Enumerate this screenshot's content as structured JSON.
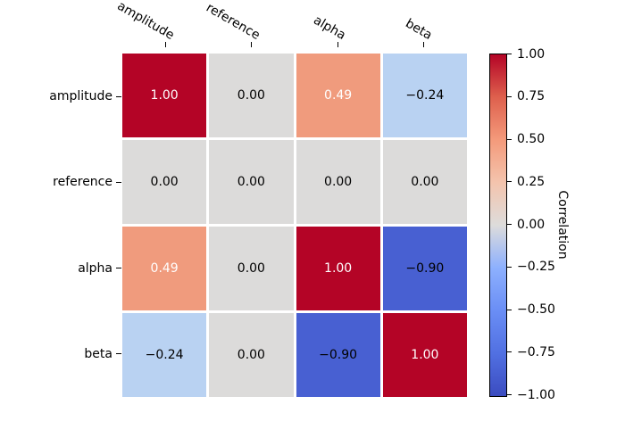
{
  "chart_data": {
    "type": "heatmap",
    "title": "",
    "variables": [
      "amplitude",
      "reference",
      "alpha",
      "beta"
    ],
    "matrix": [
      [
        1.0,
        0.0,
        0.49,
        -0.24
      ],
      [
        0.0,
        0.0,
        0.0,
        0.0
      ],
      [
        0.49,
        0.0,
        1.0,
        -0.9
      ],
      [
        -0.24,
        0.0,
        -0.9,
        1.0
      ]
    ],
    "cell_labels": [
      [
        "1.00",
        "0.00",
        "0.49",
        "−0.24"
      ],
      [
        "0.00",
        "0.00",
        "0.00",
        "0.00"
      ],
      [
        "0.49",
        "0.00",
        "1.00",
        "−0.90"
      ],
      [
        "−0.24",
        "0.00",
        "−0.90",
        "1.00"
      ]
    ],
    "cell_bg": [
      [
        "#b40426",
        "#dcdbda",
        "#f09b7d",
        "#b9d2f2"
      ],
      [
        "#dcdbda",
        "#dcdbda",
        "#dcdbda",
        "#dcdbda"
      ],
      [
        "#f09b7d",
        "#dcdbda",
        "#b40426",
        "#4860d2"
      ],
      [
        "#b9d2f2",
        "#dcdbda",
        "#4860d2",
        "#b40426"
      ]
    ],
    "cell_fg": [
      [
        "#ffffff",
        "#000000",
        "#ffffff",
        "#000000"
      ],
      [
        "#000000",
        "#000000",
        "#000000",
        "#000000"
      ],
      [
        "#ffffff",
        "#000000",
        "#ffffff",
        "#000000"
      ],
      [
        "#000000",
        "#000000",
        "#000000",
        "#ffffff"
      ]
    ],
    "colormap": "coolwarm",
    "value_range": [
      -1,
      1
    ],
    "grid_gap_color": "#ffffff",
    "colorbar": {
      "label": "Correlation",
      "tick_labels": [
        "1.00",
        "0.75",
        "0.50",
        "0.25",
        "0.00",
        "−0.25",
        "−0.50",
        "−0.75",
        "−1.00"
      ],
      "gradient": [
        "#b40426",
        "#de604d",
        "#f49a7b",
        "#f4c4ad",
        "#dddcdb",
        "#8db0fe",
        "#6a8ef5",
        "#5170e2",
        "#3b4cc0"
      ]
    }
  }
}
